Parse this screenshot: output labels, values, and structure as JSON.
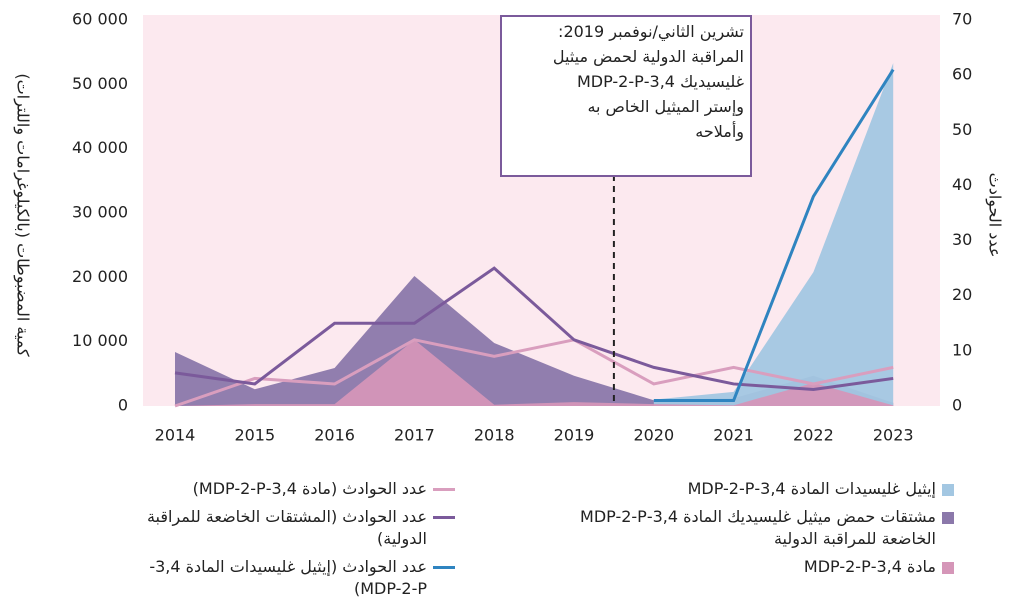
{
  "chart_data": {
    "type": "area",
    "categories": [
      "2014",
      "2015",
      "2016",
      "2017",
      "2018",
      "2019",
      "2020",
      "2021",
      "2022",
      "2023"
    ],
    "ylabel": "كمية المضبوطات (بالكيلوغرامات واللترات)",
    "y2label": "عدد الحوادث",
    "ylim": [
      0,
      60000
    ],
    "yticks": [
      0,
      {
        "value": 10000,
        "label": "10 000"
      },
      {
        "value": 20000,
        "label": "20 000"
      },
      {
        "value": 30000,
        "label": "30 000"
      },
      {
        "value": 40000,
        "label": "40 000"
      },
      {
        "value": 50000,
        "label": "50 000"
      },
      {
        "value": 60000,
        "label": "60 000"
      }
    ],
    "y2lim": [
      0,
      70
    ],
    "y2ticks": [
      0,
      10,
      20,
      30,
      40,
      50,
      60,
      70
    ],
    "annotation": {
      "lines": [
        "تشرين الثاني/نوفمبر 2019:",
        "المراقبة الدولية لحمض ميثيل",
        "غليسيديك 3,4-MDP-2-P",
        "وإستر الميثيل الخاص به",
        "وأملاحه"
      ]
    },
    "series": [
      {
        "name": "مشتقات حمض ميثيل غليسيديك المادة 3,4-MDP-2-P الخاضعة للمراقبة الدولية",
        "type": "area",
        "color": "#8b78aa",
        "values": [
          8400,
          2600,
          5900,
          20200,
          9800,
          4700,
          900,
          1200,
          4700,
          500
        ]
      },
      {
        "name": "إيثيل غليسيدات المادة 3,4-MDP-2-P",
        "type": "area",
        "color": "#a3c7e2",
        "values": [
          null,
          null,
          null,
          null,
          null,
          null,
          1000,
          2200,
          20800,
          53300
        ]
      },
      {
        "name": "مادة 3,4-MDP-2-P",
        "type": "area",
        "color": "#d596b8",
        "values": [
          0,
          300,
          300,
          10300,
          200,
          600,
          300,
          100,
          3600,
          100
        ]
      },
      {
        "name": "عدد الحوادث (مادة 3,4-MDP-2-P)",
        "type": "line",
        "axis": "y2",
        "color": "#d99ebe",
        "values": [
          0,
          5,
          4,
          12,
          9,
          12,
          4,
          7,
          4,
          7
        ]
      },
      {
        "name": "عدد الحوادث (المشتقات الخاضعة للمراقبة الدولية)",
        "type": "line",
        "axis": "y2",
        "color": "#7b5a9b",
        "values": [
          6,
          4,
          15,
          15,
          25,
          12,
          7,
          4,
          3,
          5
        ]
      },
      {
        "name": "عدد الحوادث (إيثيل غليسيدات المادة 3,4-MDP-2-P)",
        "type": "line",
        "axis": "y2",
        "color": "#2f84c0",
        "values": [
          null,
          null,
          null,
          null,
          null,
          null,
          1,
          1,
          38,
          61
        ]
      }
    ]
  }
}
